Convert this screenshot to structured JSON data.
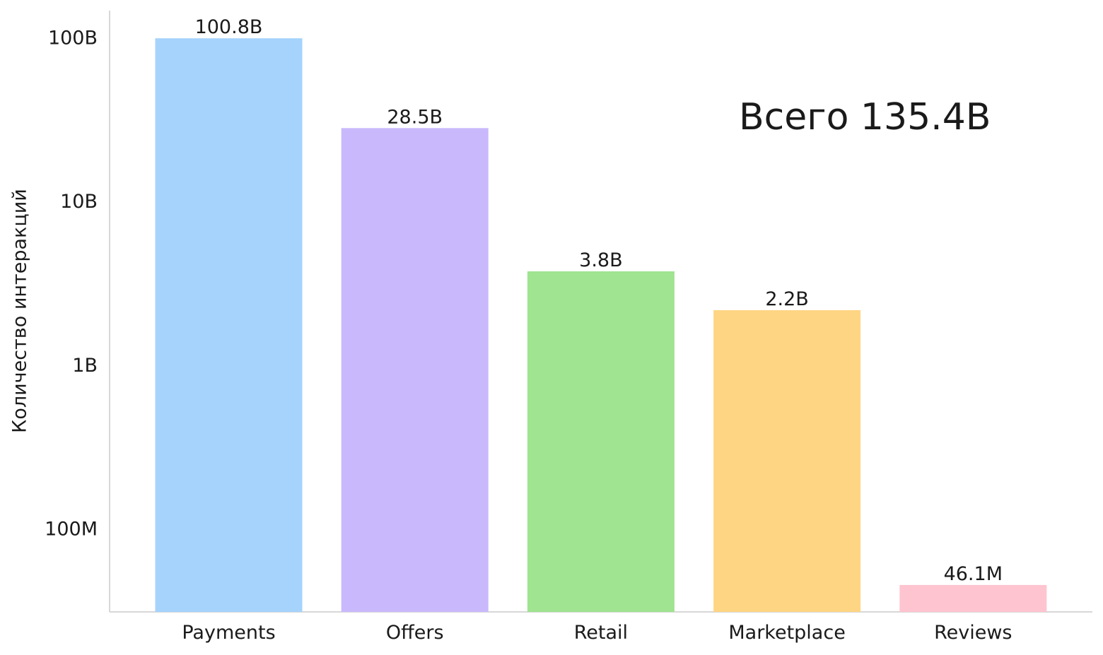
{
  "chart_data": {
    "type": "bar",
    "scale": "log",
    "ylabel": "Количество интеракций",
    "annotation": "Всего 135.4B",
    "categories": [
      "Payments",
      "Offers",
      "Retail",
      "Marketplace",
      "Reviews"
    ],
    "values": [
      100800000000,
      28500000000,
      3800000000,
      2200000000,
      46100000
    ],
    "value_labels": [
      "100.8B",
      "28.5B",
      "3.8B",
      "2.2B",
      "46.1M"
    ],
    "colors": [
      "#a5d3fc",
      "#c9b9fc",
      "#a0e390",
      "#fed583",
      "#fec4cf"
    ],
    "yticks": [
      100000000,
      1000000000,
      10000000000,
      100000000000
    ],
    "ytick_labels": [
      "100M",
      "1B",
      "10B",
      "100B"
    ],
    "ylim": [
      30000000,
      190000000000
    ],
    "grid": false,
    "legend": "none"
  }
}
